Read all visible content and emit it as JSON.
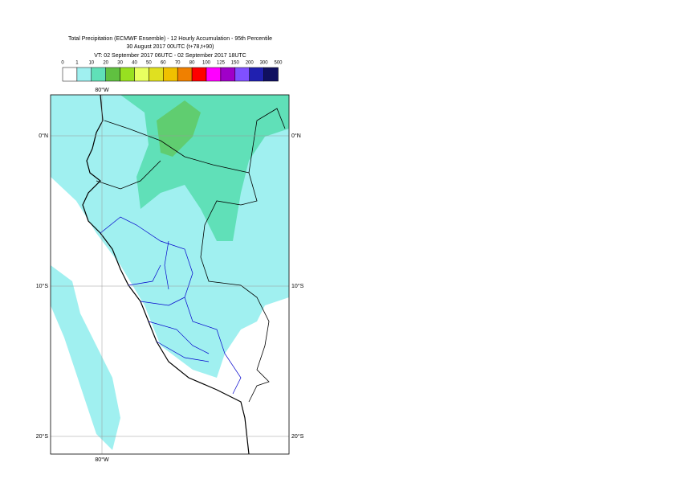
{
  "header": {
    "lines": [
      "Total Precipitation (ECMWF Ensemble) - 12 Hourly Accumulation - 95th Percentile",
      "30 August 2017 00UTC (t+78,t+90)",
      "VT: 02 September 2017 06UTC - 02 September 2017 18UTC"
    ]
  },
  "legend": {
    "levels": [
      "0",
      "1",
      "10",
      "20",
      "30",
      "40",
      "50",
      "60",
      "70",
      "80",
      "100",
      "125",
      "150",
      "200",
      "300",
      "500"
    ],
    "colors": [
      "#ffffff",
      "#a0f0f0",
      "#60e0b8",
      "#60c040",
      "#98e020",
      "#e8ff60",
      "#e0e020",
      "#f0c000",
      "#f08000",
      "#ff0000",
      "#ff00ff",
      "#a000c8",
      "#8050ff",
      "#2020b0",
      "#101060"
    ]
  },
  "map": {
    "lon_label": "80°W",
    "lat_labels": [
      "0°N",
      "10°S",
      "20°S"
    ]
  }
}
